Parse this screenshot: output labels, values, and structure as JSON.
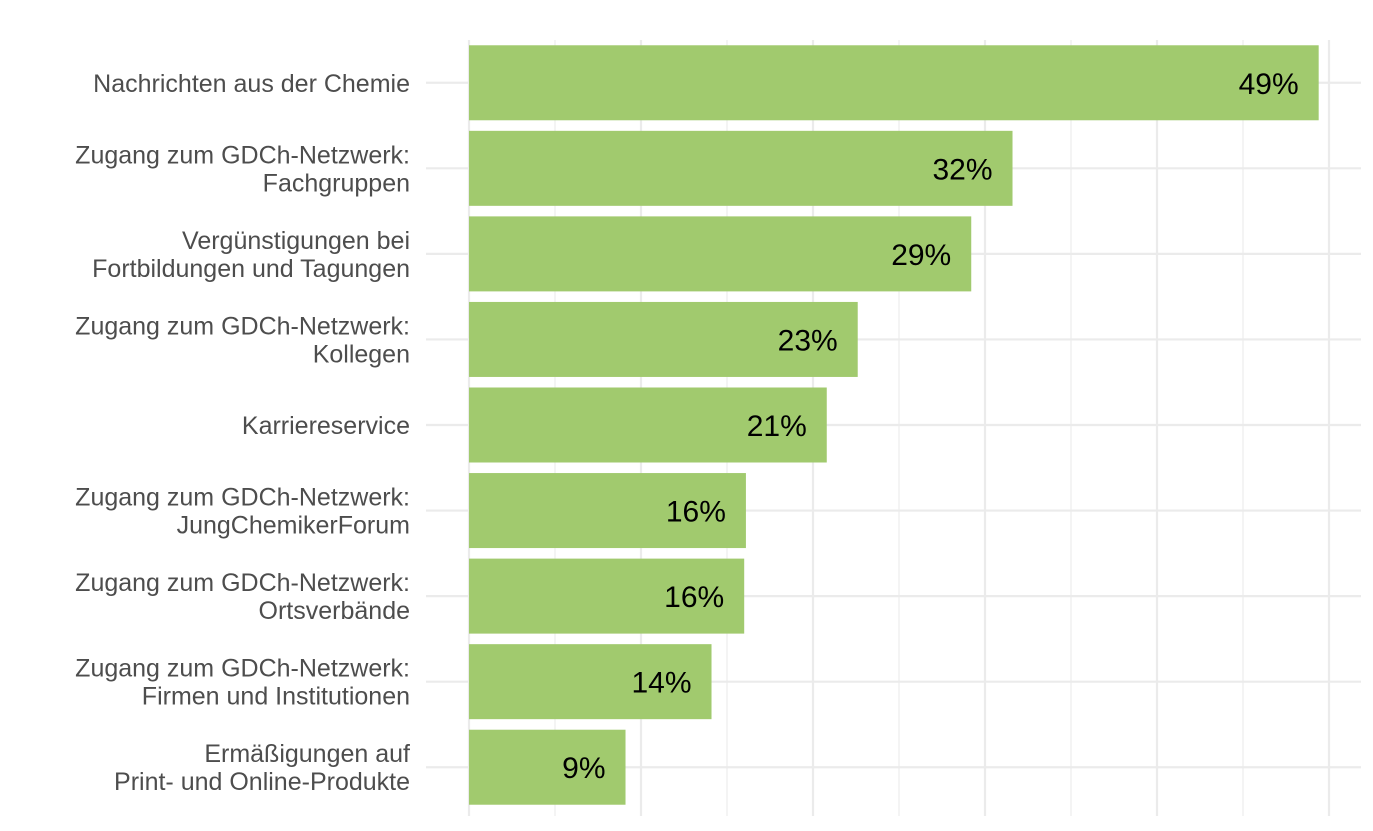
{
  "chart_data": {
    "type": "bar",
    "orientation": "horizontal",
    "title": "",
    "xlabel": "",
    "ylabel": "",
    "categories": [
      [
        "Nachrichten aus der Chemie"
      ],
      [
        "Zugang zum GDCh-Netzwerk:",
        "Fachgruppen"
      ],
      [
        "Vergünstigungen bei",
        "Fortbildungen und Tagungen"
      ],
      [
        "Zugang zum GDCh-Netzwerk:",
        "Kollegen"
      ],
      [
        "Karriereservice"
      ],
      [
        "Zugang zum GDCh-Netzwerk:",
        "JungChemikerForum"
      ],
      [
        "Zugang zum GDCh-Netzwerk:",
        "Ortsverbände"
      ],
      [
        "Zugang zum GDCh-Netzwerk:",
        "Firmen und Institutionen"
      ],
      [
        "Ermäßigungen auf",
        "Print- und Online-Produkte"
      ]
    ],
    "values": [
      49.4,
      31.6,
      29.2,
      22.6,
      20.8,
      16.1,
      16.0,
      14.1,
      9.1
    ],
    "data_labels": [
      "49%",
      "32%",
      "29%",
      "23%",
      "21%",
      "16%",
      "16%",
      "14%",
      "9%"
    ],
    "xlim": [
      0,
      50.5
    ],
    "x_gridlines_major": [
      0,
      10,
      20,
      30,
      40,
      50
    ],
    "x_gridlines_minor": [
      5,
      15,
      25,
      35,
      45
    ],
    "x_tick_labels_shown": false,
    "grid": true,
    "legend": "none",
    "colors": {
      "bar": "#a1ca6e",
      "grid": "#ebebeb",
      "category_text": "#4d4d4d",
      "value_text": "#000000"
    }
  }
}
